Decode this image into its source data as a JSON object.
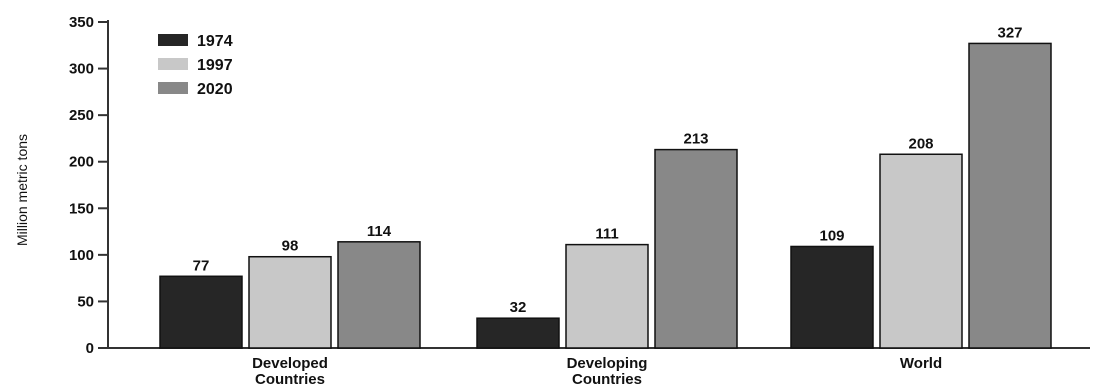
{
  "chart_data": {
    "type": "bar",
    "title": "",
    "xlabel": "",
    "ylabel": "Million metric tons",
    "ylim": [
      0,
      350
    ],
    "yticks": [
      0,
      50,
      100,
      150,
      200,
      250,
      300,
      350
    ],
    "grid": false,
    "legend_position": "top-left",
    "categories": [
      [
        "Developed",
        "Countries"
      ],
      [
        "Developing",
        "Countries"
      ],
      [
        "World"
      ]
    ],
    "series": [
      {
        "name": "1974",
        "color": "#262626",
        "values": [
          77,
          32,
          109
        ]
      },
      {
        "name": "1997",
        "color": "#c8c8c8",
        "values": [
          98,
          111,
          208
        ]
      },
      {
        "name": "2020",
        "color": "#888888",
        "values": [
          114,
          213,
          327
        ]
      }
    ],
    "data_labels": [
      [
        "77",
        "32",
        "109"
      ],
      [
        "98",
        "111",
        "208"
      ],
      [
        "114",
        "213",
        "327"
      ]
    ]
  }
}
